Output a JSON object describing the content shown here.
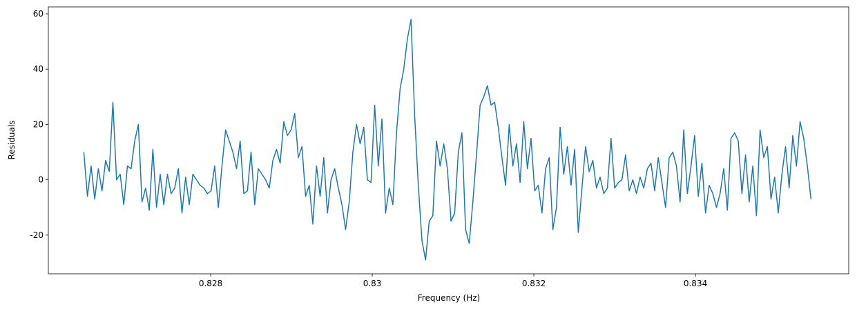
{
  "chart_data": {
    "type": "line",
    "x_label": "Frequency (Hz)",
    "y_label": "Residuals",
    "color": "#1f77b4",
    "x": [
      0.82643,
      0.826475,
      0.82652,
      0.826565,
      0.82661,
      0.826655,
      0.8267,
      0.826745,
      0.82679,
      0.826835,
      0.82688,
      0.826925,
      0.82697,
      0.827015,
      0.82706,
      0.827105,
      0.82715,
      0.827195,
      0.82724,
      0.827285,
      0.82733,
      0.827375,
      0.82742,
      0.827465,
      0.82751,
      0.827555,
      0.8276,
      0.827645,
      0.82769,
      0.827735,
      0.82778,
      0.827825,
      0.82787,
      0.827915,
      0.82796,
      0.828005,
      0.82805,
      0.828095,
      0.82814,
      0.828185,
      0.82823,
      0.828275,
      0.82832,
      0.828365,
      0.82841,
      0.828455,
      0.8285,
      0.828545,
      0.82859,
      0.828635,
      0.82868,
      0.828725,
      0.82877,
      0.828815,
      0.82886,
      0.828905,
      0.82895,
      0.828995,
      0.82904,
      0.829085,
      0.82913,
      0.829175,
      0.82922,
      0.829265,
      0.82931,
      0.829355,
      0.8294,
      0.829445,
      0.82949,
      0.829535,
      0.82958,
      0.829625,
      0.82967,
      0.829715,
      0.82976,
      0.829805,
      0.82985,
      0.829895,
      0.82994,
      0.829985,
      0.83003,
      0.830075,
      0.83012,
      0.830165,
      0.83021,
      0.830255,
      0.8303,
      0.830345,
      0.83039,
      0.830435,
      0.83048,
      0.830525,
      0.83057,
      0.830615,
      0.83066,
      0.830705,
      0.83075,
      0.830795,
      0.83084,
      0.830885,
      0.83093,
      0.830975,
      0.83102,
      0.831065,
      0.83111,
      0.831155,
      0.8312,
      0.831245,
      0.83129,
      0.831335,
      0.83138,
      0.831425,
      0.83147,
      0.831515,
      0.83156,
      0.831605,
      0.83165,
      0.831695,
      0.83174,
      0.831785,
      0.83183,
      0.831875,
      0.83192,
      0.831965,
      0.83201,
      0.832055,
      0.8321,
      0.832145,
      0.83219,
      0.832235,
      0.83228,
      0.832325,
      0.83237,
      0.832415,
      0.83246,
      0.832505,
      0.83255,
      0.832595,
      0.83264,
      0.832685,
      0.83273,
      0.832775,
      0.83282,
      0.832865,
      0.83291,
      0.832955,
      0.833,
      0.833045,
      0.83309,
      0.833135,
      0.83318,
      0.833225,
      0.83327,
      0.833315,
      0.83336,
      0.833405,
      0.83345,
      0.833495,
      0.83354,
      0.833585,
      0.83363,
      0.833675,
      0.83372,
      0.833765,
      0.83381,
      0.833855,
      0.8339,
      0.833945,
      0.83399,
      0.834035,
      0.83408,
      0.834125,
      0.83417,
      0.834215,
      0.83426,
      0.834305,
      0.83435,
      0.834395,
      0.83444,
      0.834485,
      0.83453,
      0.834575,
      0.83462,
      0.834665,
      0.83471,
      0.834755,
      0.8348,
      0.834845,
      0.83489,
      0.834935,
      0.83498,
      0.835025,
      0.83507,
      0.835115,
      0.83516,
      0.835205,
      0.83525,
      0.835295,
      0.83534,
      0.835385,
      0.83543
    ],
    "values": [
      10,
      -6,
      5,
      -7,
      4,
      -4,
      7,
      3,
      28,
      0,
      2,
      -9,
      5,
      4,
      14,
      20,
      -8,
      -3,
      -11,
      11,
      -10,
      2,
      -9,
      2,
      -5,
      -3,
      4,
      -12,
      1,
      -9,
      2,
      0,
      -2,
      -3,
      -5,
      -4,
      5,
      -10,
      5,
      18,
      14,
      10,
      4,
      14,
      -5,
      -4,
      10,
      -9,
      4,
      2,
      0,
      -3,
      7,
      11,
      6,
      21,
      16,
      18,
      24,
      8,
      12,
      -6,
      -2,
      -16,
      5,
      -6,
      8,
      -12,
      0,
      4,
      -3,
      -9,
      -18,
      -8,
      10,
      20,
      13,
      19,
      0,
      -1,
      27,
      5,
      22,
      -12,
      -3,
      -9,
      17,
      33,
      40,
      51,
      58,
      23,
      -2,
      -22,
      -29,
      -15,
      -13,
      14,
      5,
      13,
      4,
      -15,
      -12,
      10,
      17,
      -18,
      -23,
      -8,
      9,
      27,
      30,
      34,
      27,
      28,
      19,
      8,
      -2,
      20,
      5,
      13,
      -1,
      21,
      4,
      15,
      -4,
      -2,
      -12,
      4,
      8,
      -18,
      -10,
      19,
      2,
      12,
      -2,
      11,
      -19,
      -3,
      12,
      3,
      7,
      -3,
      1,
      -5,
      -3,
      15,
      -3,
      -1,
      0,
      9,
      -4,
      0,
      -5,
      1,
      -3,
      4,
      6,
      -4,
      8,
      -1,
      -10,
      8,
      10,
      5,
      -8,
      18,
      -5,
      5,
      16,
      -6,
      6,
      -12,
      -2,
      -5,
      -10,
      -5,
      4,
      -11,
      15,
      17,
      14,
      -5,
      9,
      -8,
      5,
      -13,
      18,
      8,
      12,
      -7,
      1,
      -12,
      2,
      12,
      -3,
      16,
      5,
      21,
      15,
      5,
      -7
    ],
    "xlim": [
      0.825991,
      0.835897
    ],
    "xticks": [
      0.828,
      0.83,
      0.832,
      0.834
    ],
    "ylim": [
      -34,
      62.5
    ],
    "yticks": [
      -20,
      0,
      20,
      40,
      60
    ]
  }
}
